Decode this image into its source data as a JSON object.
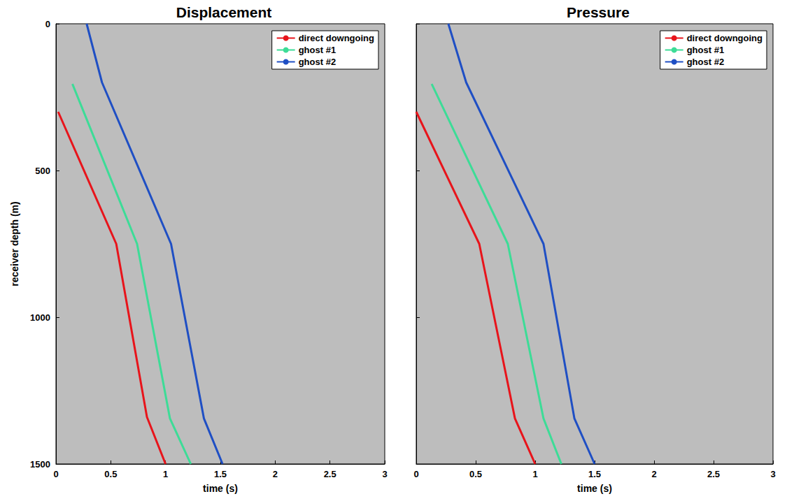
{
  "chart_data": [
    {
      "type": "line",
      "title": "Displacement",
      "x_label": "time (s)",
      "y_label": "receiver depth (m)",
      "xlim": [
        0,
        3
      ],
      "xticks": [
        0,
        0.5,
        1,
        1.5,
        2,
        2.5,
        3
      ],
      "ylim": [
        0,
        1500
      ],
      "yticks": [
        0,
        500,
        1000,
        1500
      ],
      "y_inverted": true,
      "legend": "upper right",
      "tick_labels": true,
      "series": [
        {
          "name": "direct downgoing",
          "color": "#e8141b",
          "x": [
            0.02,
            0.55,
            0.83,
            1.0
          ],
          "values": [
            300,
            750,
            1340,
            1500
          ]
        },
        {
          "name": "ghost #1",
          "color": "#3ddc97",
          "x": [
            0.15,
            0.74,
            1.04,
            1.23
          ],
          "values": [
            205,
            750,
            1345,
            1500
          ]
        },
        {
          "name": "ghost #2",
          "color": "#1f4fc4",
          "x": [
            0.28,
            0.42,
            1.05,
            1.35,
            1.52
          ],
          "values": [
            0,
            200,
            750,
            1345,
            1500
          ]
        }
      ]
    },
    {
      "type": "line",
      "title": "Pressure",
      "x_label": "time (s)",
      "xlim": [
        0,
        3
      ],
      "xticks": [
        0,
        0.5,
        1,
        1.5,
        2,
        2.5,
        3
      ],
      "ylim": [
        0,
        1500
      ],
      "yticks": [
        0,
        500,
        1000,
        1500
      ],
      "y_inverted": true,
      "legend": "upper right",
      "tick_labels": "x",
      "series": [
        {
          "name": "direct downgoing",
          "color": "#e8141b",
          "x": [
            0.0,
            0.53,
            0.83,
            1.0
          ],
          "values": [
            300,
            750,
            1345,
            1500
          ]
        },
        {
          "name": "ghost #1",
          "color": "#3ddc97",
          "x": [
            0.13,
            0.77,
            1.07,
            1.22
          ],
          "values": [
            205,
            750,
            1345,
            1500
          ]
        },
        {
          "name": "ghost #2",
          "color": "#1f4fc4",
          "x": [
            0.27,
            0.42,
            1.07,
            1.33,
            1.5
          ],
          "values": [
            0,
            200,
            750,
            1345,
            1500
          ]
        }
      ]
    }
  ]
}
